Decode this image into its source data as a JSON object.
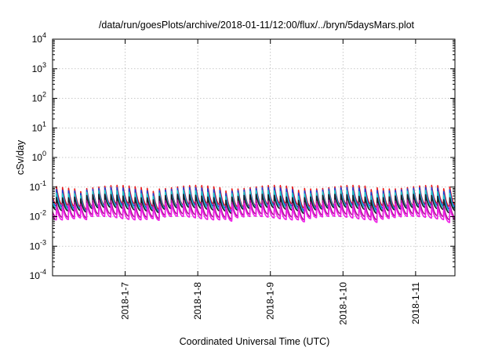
{
  "chart_data": {
    "type": "line",
    "title": "/data/run/goesPlots/archive/2018-01-11/12:00/flux/../bryn/5daysMars.plot",
    "xlabel": "Coordinated Universal Time (UTC)",
    "ylabel": "cSv/day",
    "yscale": "log",
    "ylim": [
      0.0001,
      10000
    ],
    "y_ticks": [
      {
        "base": "10",
        "exp": "-4",
        "value": 0.0001
      },
      {
        "base": "10",
        "exp": "-3",
        "value": 0.001
      },
      {
        "base": "10",
        "exp": "-2",
        "value": 0.01
      },
      {
        "base": "10",
        "exp": "-1",
        "value": 0.1
      },
      {
        "base": "10",
        "exp": "0",
        "value": 1
      },
      {
        "base": "10",
        "exp": "1",
        "value": 10
      },
      {
        "base": "10",
        "exp": "2",
        "value": 100
      },
      {
        "base": "10",
        "exp": "3",
        "value": 1000
      },
      {
        "base": "10",
        "exp": "4",
        "value": 10000
      }
    ],
    "xlim": [
      "2018-01-06T00:00",
      "2018-01-11T13:00"
    ],
    "x_ticks": [
      {
        "label": "2018-1-7",
        "value": "2018-01-07T00:00"
      },
      {
        "label": "2018-1-8",
        "value": "2018-01-08T00:00"
      },
      {
        "label": "2018-1-9",
        "value": "2018-01-09T00:00"
      },
      {
        "label": "2018-1-10",
        "value": "2018-01-10T00:00"
      },
      {
        "label": "2018-1-11",
        "value": "2018-01-11T00:00"
      }
    ],
    "grid": true,
    "legend": "none",
    "sawtooth_period_hours": 2.0,
    "series": [
      {
        "color": "#e8191a",
        "peak": 0.1,
        "base": 0.025
      },
      {
        "color": "#1f3fd6",
        "peak": 0.085,
        "base": 0.022
      },
      {
        "color": "#20c7c7",
        "peak": 0.068,
        "base": 0.02
      },
      {
        "color": "#1e1e2a",
        "peak": 0.05,
        "base": 0.018
      },
      {
        "color": "#a9158f",
        "peak": 0.032,
        "base": 0.011
      },
      {
        "color": "#ee1fe6",
        "peak": 0.025,
        "base": 0.009
      }
    ]
  }
}
